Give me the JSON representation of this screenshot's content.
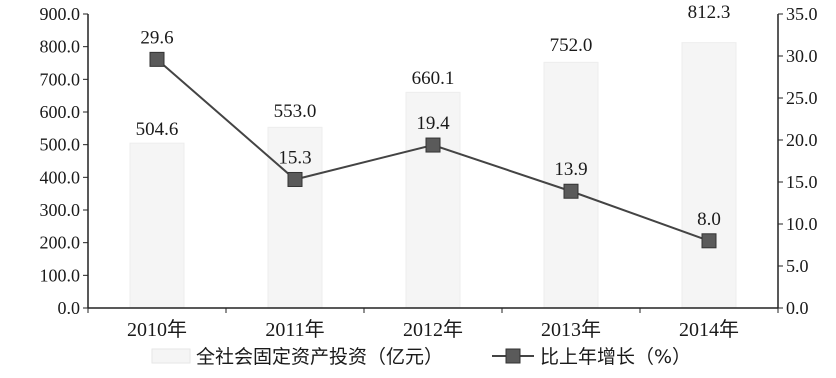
{
  "chart_data": {
    "type": "bar",
    "categories": [
      "2010年",
      "2011年",
      "2012年",
      "2013年",
      "2014年"
    ],
    "series": [
      {
        "name": "全社会固定资产投资（亿元）",
        "type": "bar",
        "axis": "left",
        "values": [
          504.6,
          553.0,
          660.1,
          752.0,
          812.3
        ],
        "labels": [
          "504.6",
          "553.0",
          "660.1",
          "752.0",
          "812.3"
        ]
      },
      {
        "name": "比上年增长（%）",
        "type": "line",
        "axis": "right",
        "values": [
          29.6,
          15.3,
          19.4,
          13.9,
          8.0
        ],
        "labels": [
          "29.6",
          "15.3",
          "19.4",
          "13.9",
          "8.0"
        ]
      }
    ],
    "y_left": {
      "ylim": [
        0,
        900
      ],
      "ticks": [
        "0.0",
        "100.0",
        "200.0",
        "300.0",
        "400.0",
        "500.0",
        "600.0",
        "700.0",
        "800.0",
        "900.0"
      ]
    },
    "y_right": {
      "ylim": [
        0,
        35
      ],
      "ticks": [
        "0.0",
        "5.0",
        "10.0",
        "15.0",
        "20.0",
        "25.0",
        "30.0",
        "35.0"
      ]
    },
    "grid": false,
    "legend_position": "bottom",
    "colors": {
      "bar": "#f5f5f5",
      "line": "#444444",
      "marker": "#5a5a5a",
      "axis": "#222222"
    }
  }
}
